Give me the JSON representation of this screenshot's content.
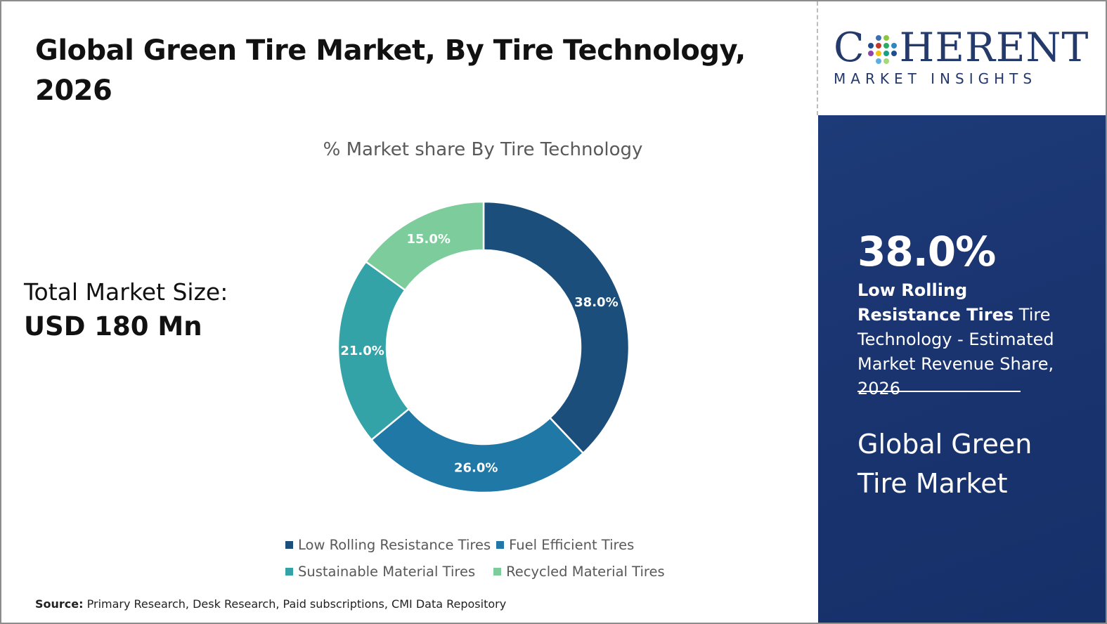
{
  "title": "Global Green Tire Market, By Tire Technology, 2026",
  "total": {
    "label": "Total Market Size:",
    "value": "USD 180 Mn"
  },
  "source": {
    "label": "Source:",
    "text": " Primary Research, Desk Research, Paid subscriptions, CMI Data Repository"
  },
  "logo": {
    "main_left": "C",
    "main_right": "HERENT",
    "sub": "MARKET INSIGHTS"
  },
  "panel": {
    "stat": "38.0%",
    "desc_bold": "Low Rolling Resistance Tires",
    "desc_rest": " Tire Technology - Estimated Market Revenue Share, 2026",
    "market_name": "Global Green Tire Market"
  },
  "chart_data": {
    "type": "pie",
    "donut": true,
    "title": "% Market share By Tire Technology",
    "categories": [
      "Low Rolling Resistance Tires",
      "Fuel Efficient Tires",
      "Sustainable Material Tires",
      "Recycled Material Tires"
    ],
    "values": [
      38.0,
      26.0,
      21.0,
      15.0
    ],
    "labels": [
      "38.0%",
      "26.0%",
      "21.0%",
      "15.0%"
    ],
    "colors": [
      "#1b4e7a",
      "#1f78a5",
      "#33a3a8",
      "#7ccc9c"
    ],
    "legend": "bottom"
  }
}
